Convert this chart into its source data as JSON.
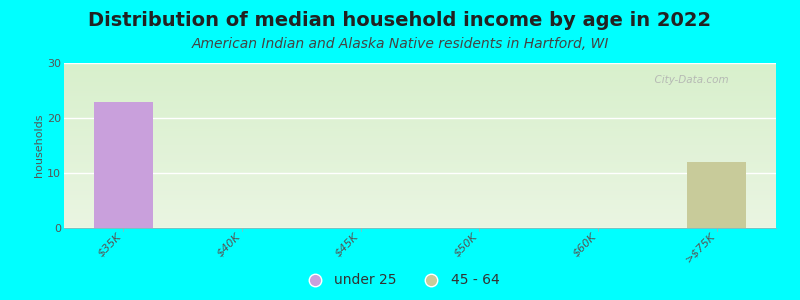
{
  "title": "Distribution of median household income by age in 2022",
  "subtitle": "American Indian and Alaska Native residents in Hartford, WI",
  "ylabel": "households",
  "background_color": "#00FFFF",
  "plot_bg_top": "#eaf5e2",
  "plot_bg_bottom": "#d8f0cc",
  "categories": [
    "$35K",
    "$40K",
    "$45K",
    "$50K",
    "$60K",
    ">$75K"
  ],
  "series": [
    {
      "label": "under 25",
      "color": "#c9a0dc",
      "values": [
        23,
        0,
        0,
        0,
        0,
        0
      ]
    },
    {
      "label": "45 - 64",
      "color": "#c8cb9a",
      "values": [
        0,
        0,
        0,
        0,
        0,
        12
      ]
    }
  ],
  "ylim": [
    0,
    30
  ],
  "yticks": [
    0,
    10,
    20,
    30
  ],
  "bar_width": 0.5,
  "title_fontsize": 14,
  "subtitle_fontsize": 10,
  "ylabel_fontsize": 8,
  "tick_label_fontsize": 8,
  "legend_fontsize": 10,
  "watermark": "  City-Data.com"
}
